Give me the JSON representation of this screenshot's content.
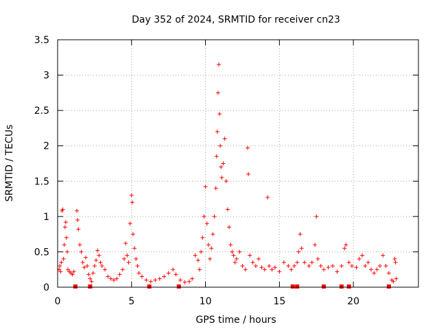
{
  "chart_data": {
    "type": "scatter",
    "title": "Day 352 of 2024, SRMTID for receiver cn23",
    "xlabel": "GPS time / hours",
    "ylabel": "SRMTID / TECUs",
    "xlim": [
      0,
      24.4
    ],
    "ylim": [
      0,
      3.5
    ],
    "xticks": [
      0,
      5,
      10,
      15,
      20
    ],
    "xtick_labels": [
      "0",
      "5",
      "10",
      "15",
      "20"
    ],
    "yticks": [
      0,
      0.5,
      1,
      1.5,
      2,
      2.5,
      3,
      3.5
    ],
    "ytick_labels": [
      "0",
      "0.5",
      "1",
      "1.5",
      "2",
      "2.5",
      "3",
      "3.5"
    ],
    "grid": true,
    "marker": "+",
    "marker_color": "#ff0000",
    "series": [
      {
        "name": "SRMTID",
        "points": [
          [
            0.1,
            0.25
          ],
          [
            0.15,
            0.3
          ],
          [
            0.2,
            0.22
          ],
          [
            0.25,
            0.35
          ],
          [
            0.3,
            1.08
          ],
          [
            0.35,
            1.1
          ],
          [
            0.4,
            0.4
          ],
          [
            0.45,
            0.6
          ],
          [
            0.5,
            0.85
          ],
          [
            0.55,
            0.92
          ],
          [
            0.6,
            0.7
          ],
          [
            0.65,
            0.5
          ],
          [
            0.7,
            0.25
          ],
          [
            0.8,
            0.22
          ],
          [
            0.9,
            0.2
          ],
          [
            1.0,
            0.18
          ],
          [
            1.1,
            0.22
          ],
          [
            1.3,
            1.08
          ],
          [
            1.35,
            0.95
          ],
          [
            1.4,
            0.82
          ],
          [
            1.5,
            0.6
          ],
          [
            1.6,
            0.5
          ],
          [
            1.7,
            0.35
          ],
          [
            1.8,
            0.28
          ],
          [
            1.9,
            0.42
          ],
          [
            2.0,
            0.3
          ],
          [
            2.1,
            0.18
          ],
          [
            2.2,
            0.12
          ],
          [
            2.3,
            0.08
          ],
          [
            2.4,
            0.2
          ],
          [
            2.5,
            0.3
          ],
          [
            2.6,
            0.38
          ],
          [
            2.7,
            0.52
          ],
          [
            2.8,
            0.45
          ],
          [
            2.9,
            0.35
          ],
          [
            3.0,
            0.3
          ],
          [
            3.2,
            0.25
          ],
          [
            3.4,
            0.15
          ],
          [
            3.6,
            0.12
          ],
          [
            3.8,
            0.1
          ],
          [
            4.0,
            0.12
          ],
          [
            4.2,
            0.18
          ],
          [
            4.4,
            0.25
          ],
          [
            4.5,
            0.4
          ],
          [
            4.6,
            0.62
          ],
          [
            4.7,
            0.45
          ],
          [
            4.8,
            0.35
          ],
          [
            4.9,
            0.9
          ],
          [
            5.0,
            1.3
          ],
          [
            5.05,
            1.2
          ],
          [
            5.1,
            0.75
          ],
          [
            5.2,
            0.55
          ],
          [
            5.3,
            0.4
          ],
          [
            5.4,
            0.3
          ],
          [
            5.5,
            0.2
          ],
          [
            5.7,
            0.15
          ],
          [
            6.0,
            0.1
          ],
          [
            6.3,
            0.08
          ],
          [
            6.6,
            0.1
          ],
          [
            6.9,
            0.12
          ],
          [
            7.2,
            0.15
          ],
          [
            7.5,
            0.2
          ],
          [
            7.8,
            0.25
          ],
          [
            8.0,
            0.18
          ],
          [
            8.3,
            0.1
          ],
          [
            8.6,
            0.07
          ],
          [
            8.9,
            0.08
          ],
          [
            9.1,
            0.12
          ],
          [
            9.3,
            0.45
          ],
          [
            9.5,
            0.38
          ],
          [
            9.6,
            0.25
          ],
          [
            9.7,
            0.5
          ],
          [
            9.8,
            0.7
          ],
          [
            9.9,
            1.0
          ],
          [
            10.0,
            1.42
          ],
          [
            10.1,
            0.9
          ],
          [
            10.2,
            0.6
          ],
          [
            10.3,
            0.4
          ],
          [
            10.4,
            0.55
          ],
          [
            10.5,
            0.75
          ],
          [
            10.6,
            1.0
          ],
          [
            10.7,
            1.4
          ],
          [
            10.75,
            1.85
          ],
          [
            10.8,
            2.2
          ],
          [
            10.85,
            2.75
          ],
          [
            10.9,
            3.15
          ],
          [
            10.95,
            2.45
          ],
          [
            11.0,
            2.0
          ],
          [
            11.05,
            1.7
          ],
          [
            11.1,
            1.55
          ],
          [
            11.2,
            1.75
          ],
          [
            11.3,
            2.1
          ],
          [
            11.4,
            1.5
          ],
          [
            11.5,
            1.1
          ],
          [
            11.6,
            0.85
          ],
          [
            11.7,
            0.6
          ],
          [
            11.8,
            0.5
          ],
          [
            11.9,
            0.45
          ],
          [
            12.0,
            0.35
          ],
          [
            12.1,
            0.4
          ],
          [
            12.3,
            0.5
          ],
          [
            12.5,
            0.3
          ],
          [
            12.7,
            0.25
          ],
          [
            12.85,
            1.97
          ],
          [
            12.9,
            1.6
          ],
          [
            13.0,
            0.45
          ],
          [
            13.2,
            0.35
          ],
          [
            13.4,
            0.3
          ],
          [
            13.6,
            0.4
          ],
          [
            13.8,
            0.28
          ],
          [
            14.0,
            0.25
          ],
          [
            14.2,
            1.27
          ],
          [
            14.3,
            0.3
          ],
          [
            14.5,
            0.25
          ],
          [
            14.7,
            0.28
          ],
          [
            15.0,
            0.22
          ],
          [
            15.3,
            0.35
          ],
          [
            15.6,
            0.3
          ],
          [
            15.8,
            0.25
          ],
          [
            16.0,
            0.3
          ],
          [
            16.2,
            0.35
          ],
          [
            16.3,
            0.5
          ],
          [
            16.4,
            0.75
          ],
          [
            16.5,
            0.55
          ],
          [
            16.7,
            0.35
          ],
          [
            17.0,
            0.3
          ],
          [
            17.2,
            0.35
          ],
          [
            17.4,
            0.6
          ],
          [
            17.5,
            1.0
          ],
          [
            17.6,
            0.4
          ],
          [
            17.8,
            0.3
          ],
          [
            18.0,
            0.25
          ],
          [
            18.3,
            0.28
          ],
          [
            18.6,
            0.3
          ],
          [
            18.9,
            0.22
          ],
          [
            19.2,
            0.3
          ],
          [
            19.4,
            0.55
          ],
          [
            19.5,
            0.6
          ],
          [
            19.7,
            0.35
          ],
          [
            19.9,
            0.3
          ],
          [
            20.2,
            0.28
          ],
          [
            20.4,
            0.4
          ],
          [
            20.6,
            0.45
          ],
          [
            20.8,
            0.3
          ],
          [
            21.0,
            0.35
          ],
          [
            21.2,
            0.25
          ],
          [
            21.4,
            0.2
          ],
          [
            21.6,
            0.25
          ],
          [
            21.8,
            0.3
          ],
          [
            22.0,
            0.45
          ],
          [
            22.2,
            0.3
          ],
          [
            22.4,
            0.2
          ],
          [
            22.6,
            0.1
          ],
          [
            22.7,
            0.08
          ],
          [
            22.8,
            0.4
          ],
          [
            22.85,
            0.35
          ],
          [
            22.9,
            0.12
          ]
        ]
      },
      {
        "name": "zero markers",
        "markers": "square",
        "x": [
          1.2,
          2.2,
          6.2,
          8.2,
          15.9,
          16.2,
          18.0,
          19.2,
          19.7,
          22.4
        ]
      }
    ]
  }
}
